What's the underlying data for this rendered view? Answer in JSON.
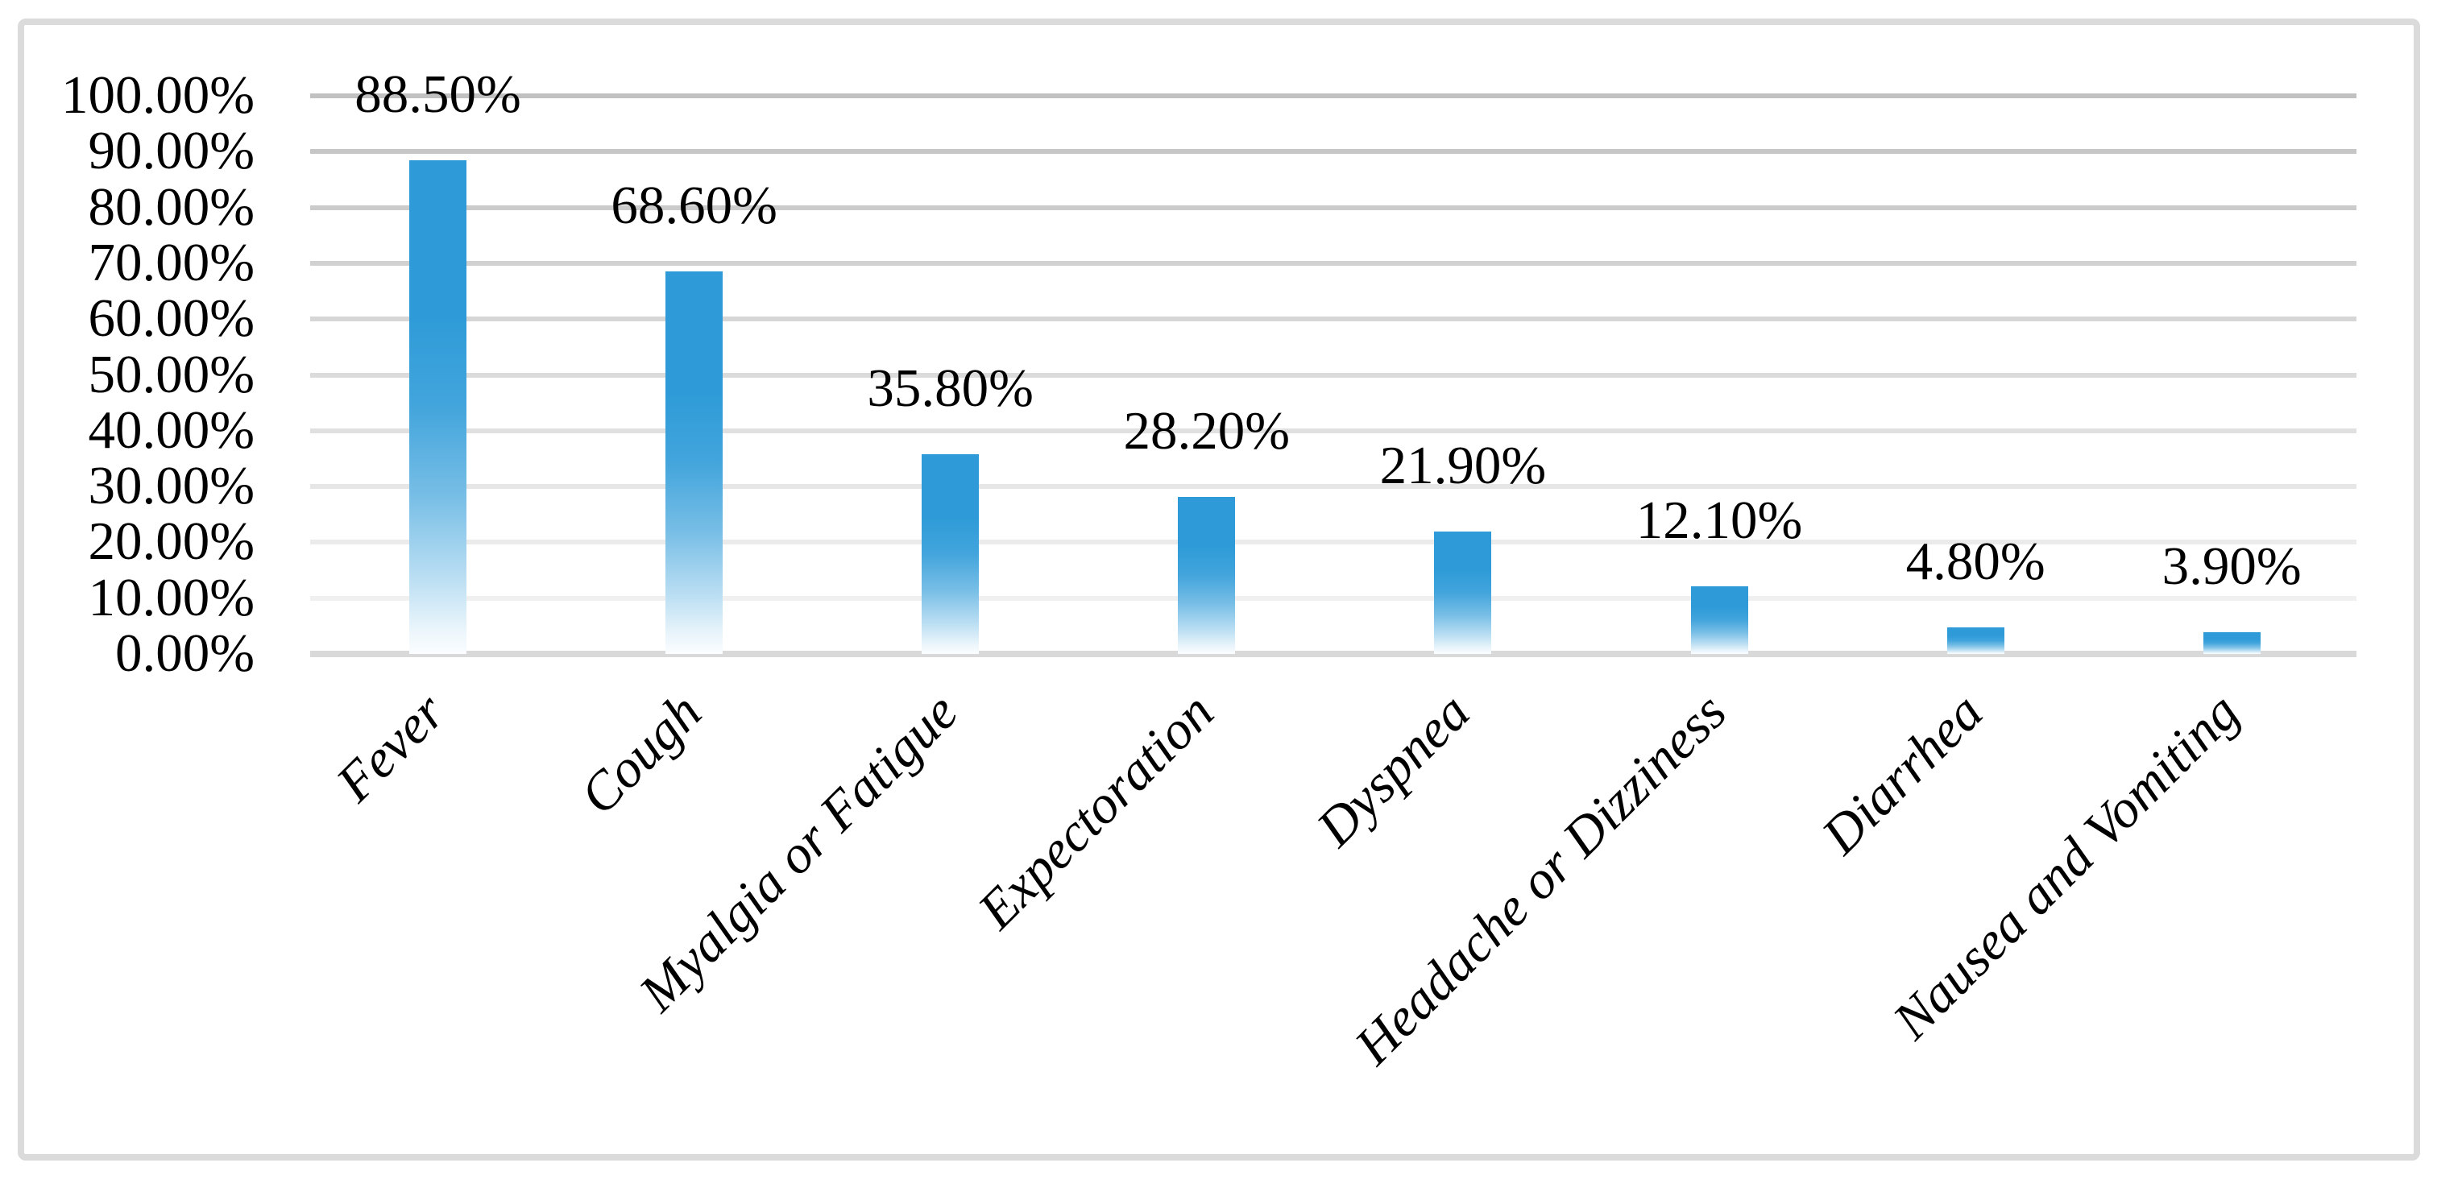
{
  "chart_data": {
    "type": "bar",
    "title": "",
    "xlabel": "",
    "ylabel": "",
    "legend": "none",
    "grid": "horizontal",
    "categories": [
      "Fever",
      "Cough",
      "Myalgia or Fatigue",
      "Expectoration",
      "Dyspnea",
      "Headache or Dizziness",
      "Diarrhea",
      "Nausea and Vomiting"
    ],
    "values": [
      88.5,
      68.6,
      35.8,
      28.2,
      21.9,
      12.1,
      4.8,
      3.9
    ],
    "data_labels": [
      "88.50%",
      "68.60%",
      "35.80%",
      "28.20%",
      "21.90%",
      "12.10%",
      "4.80%",
      "3.90%"
    ],
    "y_tick_labels": [
      "100.00%",
      "90.00%",
      "80.00%",
      "70.00%",
      "60.00%",
      "50.00%",
      "40.00%",
      "30.00%",
      "20.00%",
      "10.00%",
      "0.00%"
    ],
    "ylim": [
      0,
      100
    ],
    "y_tick_step": 10,
    "colors": {
      "bar_top": "#2E9BD8",
      "bar_bottom": "#FBFDFF",
      "gridline_top": "#C1C1C1",
      "gridline_bottom": "#F0F0F0",
      "axis_baseline": "#D9D9D9",
      "figure_border": "#DBDBDB",
      "text": "#000000"
    }
  }
}
